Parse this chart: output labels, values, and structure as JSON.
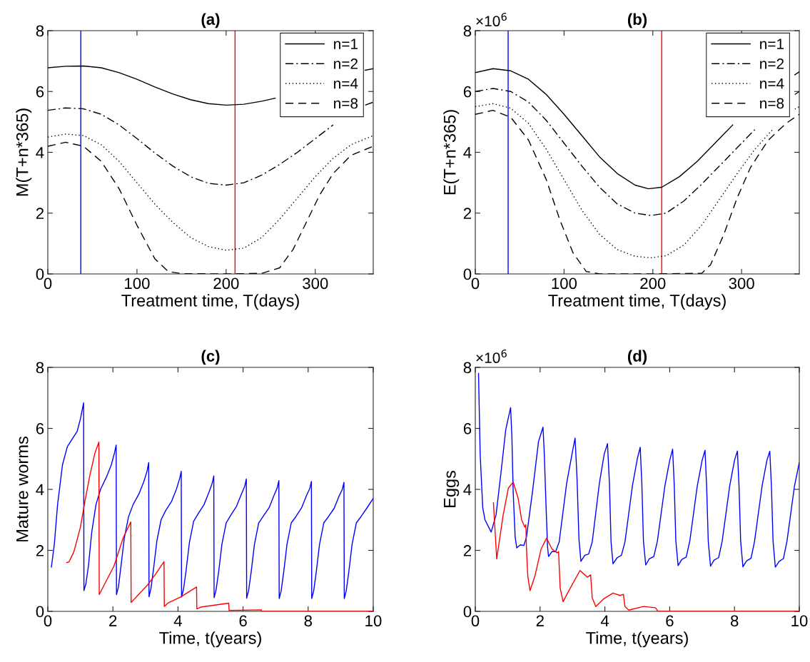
{
  "chart_data": [
    {
      "type": "line",
      "title": "(a)",
      "xlabel": "Treatment time, T(days)",
      "ylabel": "M(T+n*365)",
      "xlim": [
        0,
        365
      ],
      "xticks": [
        0,
        100,
        200,
        300
      ],
      "ylim": [
        0,
        8
      ],
      "yticks": [
        0,
        2,
        4,
        6,
        8
      ],
      "grid": false,
      "legend": "top right",
      "ref_lines": [
        {
          "axis": "x",
          "value": 37,
          "color": "#0000ff"
        },
        {
          "axis": "x",
          "value": 210,
          "color": "#ff0000"
        }
      ],
      "series": [
        {
          "name": "n=1",
          "color": "#000000",
          "line_style": "solid",
          "x": [
            0,
            20,
            40,
            60,
            80,
            100,
            120,
            140,
            160,
            180,
            200,
            220,
            240,
            255,
            280,
            300,
            320,
            340,
            356,
            365
          ],
          "values": [
            6.78,
            6.83,
            6.84,
            6.78,
            6.62,
            6.4,
            6.15,
            5.92,
            5.73,
            5.6,
            5.55,
            5.58,
            5.68,
            5.78,
            null,
            null,
            null,
            null,
            6.7,
            6.75
          ]
        },
        {
          "name": "n=2",
          "color": "#000000",
          "line_style": "dashdot",
          "x": [
            0,
            20,
            40,
            60,
            80,
            100,
            120,
            140,
            160,
            180,
            200,
            220,
            240,
            260,
            280,
            300,
            320,
            340,
            356,
            365
          ],
          "values": [
            5.38,
            5.46,
            5.43,
            5.25,
            4.9,
            4.45,
            3.98,
            3.55,
            3.2,
            2.98,
            2.92,
            3.0,
            3.25,
            3.6,
            4.0,
            4.45,
            4.9,
            null,
            5.55,
            5.65
          ]
        },
        {
          "name": "n=4",
          "color": "#000000",
          "line_style": "dotted",
          "x": [
            0,
            20,
            40,
            60,
            80,
            100,
            120,
            140,
            160,
            180,
            200,
            220,
            240,
            260,
            280,
            300,
            320,
            340,
            365
          ],
          "values": [
            4.5,
            4.6,
            4.55,
            4.25,
            3.7,
            3.0,
            2.3,
            1.7,
            1.2,
            0.9,
            0.78,
            0.85,
            1.2,
            1.8,
            2.5,
            3.2,
            3.8,
            4.25,
            4.55
          ]
        },
        {
          "name": "n=8",
          "color": "#000000",
          "line_style": "dashed",
          "x": [
            0,
            20,
            40,
            60,
            80,
            100,
            120,
            135,
            150,
            200,
            240,
            260,
            275,
            290,
            305,
            320,
            340,
            365
          ],
          "values": [
            4.2,
            4.33,
            4.2,
            3.7,
            2.8,
            1.6,
            0.5,
            0.08,
            0.01,
            0,
            0.02,
            0.2,
            0.8,
            1.7,
            2.6,
            3.3,
            3.9,
            4.2
          ]
        }
      ]
    },
    {
      "type": "line",
      "title": "(b)",
      "xlabel": "Treatment time, T(days)",
      "ylabel": "E(T+n*365)",
      "annotations": [
        "×10$^{6}$"
      ],
      "xlim": [
        0,
        365
      ],
      "xticks": [
        0,
        100,
        200,
        300
      ],
      "ylim": [
        0,
        8
      ],
      "yticks": [
        0,
        2,
        4,
        6,
        8
      ],
      "grid": false,
      "legend": "top right",
      "ref_lines": [
        {
          "axis": "x",
          "value": 37,
          "color": "#0000ff"
        },
        {
          "axis": "x",
          "value": 210,
          "color": "#ff0000"
        }
      ],
      "series": [
        {
          "name": "n=1",
          "color": "#000000",
          "line_style": "solid",
          "x": [
            0,
            20,
            40,
            60,
            80,
            100,
            120,
            140,
            160,
            180,
            195,
            210,
            230,
            250,
            270,
            290,
            310,
            330,
            350,
            360,
            365
          ],
          "values": [
            6.62,
            6.75,
            6.68,
            6.4,
            5.9,
            5.25,
            4.55,
            3.85,
            3.3,
            2.92,
            2.8,
            2.85,
            3.2,
            3.7,
            4.3,
            4.9,
            null,
            null,
            null,
            6.55,
            6.65
          ]
        },
        {
          "name": "n=2",
          "color": "#000000",
          "line_style": "dashdot",
          "x": [
            0,
            20,
            40,
            60,
            80,
            100,
            120,
            140,
            160,
            180,
            198,
            215,
            235,
            255,
            275,
            295,
            315,
            335,
            355,
            360,
            365
          ],
          "values": [
            6.0,
            6.1,
            6.0,
            5.65,
            5.05,
            4.3,
            3.55,
            2.85,
            2.3,
            2.0,
            1.92,
            2.0,
            2.4,
            2.95,
            3.55,
            4.15,
            4.75,
            null,
            null,
            5.9,
            6.0
          ]
        },
        {
          "name": "n=4",
          "color": "#000000",
          "line_style": "dotted",
          "x": [
            0,
            20,
            40,
            60,
            80,
            100,
            120,
            140,
            160,
            180,
            198,
            215,
            235,
            255,
            275,
            295,
            315,
            335,
            355,
            360,
            365
          ],
          "values": [
            5.5,
            5.6,
            5.45,
            4.95,
            4.1,
            3.1,
            2.1,
            1.3,
            0.8,
            0.58,
            0.53,
            0.6,
            0.95,
            1.6,
            2.45,
            3.3,
            4.1,
            4.75,
            null,
            5.42,
            5.5
          ]
        },
        {
          "name": "n=8",
          "color": "#000000",
          "line_style": "dashed",
          "x": [
            0,
            20,
            40,
            60,
            80,
            95,
            110,
            125,
            140,
            200,
            255,
            265,
            280,
            295,
            310,
            330,
            350,
            365
          ],
          "values": [
            5.25,
            5.38,
            5.15,
            4.4,
            3.1,
            1.8,
            0.7,
            0.08,
            0,
            0,
            0.02,
            0.3,
            1.3,
            2.5,
            3.5,
            4.4,
            4.95,
            5.25
          ]
        }
      ]
    },
    {
      "type": "line",
      "title": "(c)",
      "xlabel": "Time, t(years)",
      "ylabel": "Mature worms",
      "xlim": [
        0,
        10
      ],
      "xticks": [
        0,
        2,
        4,
        6,
        8,
        10
      ],
      "ylim": [
        0,
        8
      ],
      "yticks": [
        0,
        2,
        4,
        6,
        8
      ],
      "grid": false,
      "legend": false,
      "series": [
        {
          "color": "#0000ff",
          "line_style": "solid",
          "x": [
            0.11,
            0.2,
            0.3,
            0.45,
            0.6,
            0.75,
            0.9,
            1.0,
            1.1,
            1.11,
            1.17,
            1.25,
            1.35,
            1.48,
            1.62,
            1.8,
            1.95,
            2.05,
            2.1,
            2.11,
            2.17,
            2.25,
            2.35,
            2.48,
            2.62,
            2.8,
            2.95,
            3.05,
            3.1,
            3.11,
            3.17,
            3.25,
            3.35,
            3.48,
            3.62,
            3.8,
            3.95,
            4.05,
            4.1,
            4.11,
            4.17,
            4.25,
            4.35,
            4.48,
            4.62,
            4.8,
            4.95,
            5.05,
            5.1,
            5.11,
            5.17,
            5.25,
            5.35,
            5.48,
            5.62,
            5.8,
            5.95,
            6.05,
            6.1,
            6.11,
            6.17,
            6.25,
            6.35,
            6.48,
            6.62,
            6.8,
            6.95,
            7.05,
            7.1,
            7.11,
            7.17,
            7.25,
            7.35,
            7.48,
            7.62,
            7.8,
            7.95,
            8.05,
            8.1,
            8.11,
            8.17,
            8.25,
            8.35,
            8.48,
            8.62,
            8.8,
            8.95,
            9.05,
            9.1,
            9.11,
            9.17,
            9.25,
            9.35,
            9.48,
            9.62,
            9.8,
            10
          ],
          "values": [
            1.45,
            2.2,
            3.5,
            4.8,
            5.4,
            5.65,
            5.9,
            6.3,
            6.84,
            0.68,
            0.9,
            1.5,
            2.6,
            3.5,
            4.0,
            4.4,
            4.8,
            5.2,
            5.45,
            0.55,
            0.8,
            1.5,
            2.4,
            3.1,
            3.5,
            3.85,
            4.25,
            4.6,
            4.88,
            0.48,
            0.75,
            1.4,
            2.3,
            3.0,
            3.3,
            3.6,
            4.0,
            4.35,
            4.59,
            0.47,
            0.72,
            1.35,
            2.25,
            2.95,
            3.2,
            3.5,
            3.9,
            4.2,
            4.44,
            0.45,
            0.7,
            1.3,
            2.2,
            2.9,
            3.15,
            3.45,
            3.85,
            4.1,
            4.34,
            0.43,
            0.68,
            1.3,
            2.2,
            2.9,
            3.12,
            3.4,
            3.8,
            4.05,
            4.29,
            0.42,
            0.67,
            1.3,
            2.2,
            2.9,
            3.1,
            3.4,
            3.8,
            4.03,
            4.26,
            0.42,
            0.67,
            1.3,
            2.2,
            2.9,
            3.1,
            3.38,
            3.78,
            4.0,
            4.23,
            0.42,
            0.67,
            1.3,
            2.2,
            2.9,
            3.1,
            3.38,
            3.7
          ]
        },
        {
          "color": "#ff0000",
          "line_style": "solid",
          "x": [
            0.58,
            0.65,
            0.8,
            1.0,
            1.15,
            1.3,
            1.45,
            1.57,
            1.58,
            1.7,
            2.03,
            2.32,
            2.55,
            2.56,
            2.7,
            3.06,
            3.3,
            3.57,
            3.58,
            3.7,
            4.08,
            4.57,
            4.58,
            4.7,
            5.56,
            5.57,
            6.56,
            6.57,
            10
          ],
          "values": [
            1.6,
            1.62,
            1.95,
            2.75,
            3.67,
            4.5,
            5.2,
            5.55,
            0.55,
            0.8,
            1.48,
            2.42,
            2.93,
            0.29,
            0.45,
            0.86,
            1.2,
            1.63,
            0.16,
            0.28,
            0.47,
            0.8,
            0.08,
            0.14,
            0.27,
            0.03,
            0.05,
            0.01,
            0.0
          ]
        }
      ]
    },
    {
      "type": "line",
      "title": "(d)",
      "xlabel": "Time, t(years)",
      "ylabel": "Eggs",
      "annotations": [
        "×10$^{6}$"
      ],
      "xlim": [
        0,
        10
      ],
      "xticks": [
        0,
        2,
        4,
        6,
        8,
        10
      ],
      "ylim": [
        0,
        8
      ],
      "yticks": [
        0,
        2,
        4,
        6,
        8
      ],
      "grid": false,
      "legend": false,
      "series": [
        {
          "color": "#0000ff",
          "line_style": "solid",
          "x": [
            0.1,
            0.15,
            0.23,
            0.3,
            0.49,
            0.64,
            0.79,
            0.94,
            1.09,
            1.13,
            1.17,
            1.23,
            1.28,
            1.39,
            1.5,
            1.58,
            1.77,
            1.95,
            2.09,
            2.13,
            2.18,
            2.23,
            2.26,
            2.37,
            2.48,
            2.59,
            2.82,
            3.0,
            3.08,
            3.14,
            3.2,
            3.26,
            3.38,
            3.5,
            3.61,
            3.83,
            3.98,
            4.08,
            4.14,
            4.19,
            4.25,
            4.38,
            4.51,
            4.62,
            4.85,
            5.0,
            5.09,
            5.14,
            5.19,
            5.26,
            5.37,
            5.51,
            5.62,
            5.85,
            6.0,
            6.09,
            6.14,
            6.19,
            6.26,
            6.37,
            6.51,
            6.62,
            6.85,
            7.0,
            7.09,
            7.14,
            7.19,
            7.26,
            7.37,
            7.51,
            7.62,
            7.85,
            8.0,
            8.09,
            8.14,
            8.19,
            8.26,
            8.37,
            8.51,
            8.62,
            8.85,
            9.0,
            9.09,
            9.14,
            9.19,
            9.26,
            9.37,
            9.51,
            9.62,
            9.85,
            10
          ],
          "values": [
            7.8,
            5.16,
            3.4,
            3.0,
            2.6,
            3.16,
            4.52,
            5.96,
            6.68,
            5.7,
            3.9,
            2.44,
            2.08,
            2.18,
            2.16,
            2.44,
            3.96,
            5.56,
            6.04,
            5.16,
            3.56,
            2.12,
            1.8,
            1.96,
            1.96,
            2.28,
            4.2,
            5.24,
            5.68,
            4.36,
            2.36,
            1.64,
            1.84,
            1.88,
            2.28,
            4.2,
            5.16,
            5.5,
            4.2,
            2.28,
            1.56,
            1.76,
            1.84,
            2.28,
            4.12,
            5.0,
            5.38,
            4.2,
            2.3,
            1.52,
            1.72,
            1.8,
            2.3,
            4.1,
            4.95,
            5.32,
            4.15,
            2.3,
            1.5,
            1.7,
            1.78,
            2.3,
            4.1,
            4.95,
            5.28,
            4.1,
            2.3,
            1.48,
            1.68,
            1.76,
            2.3,
            4.1,
            4.95,
            5.26,
            4.1,
            2.3,
            1.46,
            1.65,
            1.74,
            2.3,
            4.1,
            4.95,
            5.25,
            4.1,
            2.3,
            1.45,
            1.63,
            1.73,
            2.3,
            4.1,
            4.88
          ]
        },
        {
          "color": "#ff0000",
          "line_style": "solid",
          "x": [
            0.56,
            0.66,
            0.86,
            1.02,
            1.17,
            1.32,
            1.43,
            1.53,
            1.56,
            1.58,
            1.62,
            1.69,
            1.84,
            2.03,
            2.2,
            2.37,
            2.52,
            2.57,
            2.62,
            2.71,
            2.89,
            3.23,
            3.46,
            3.56,
            3.61,
            3.72,
            3.95,
            4.25,
            4.47,
            4.57,
            4.62,
            4.74,
            5.19,
            5.56,
            5.64,
            10
          ],
          "values": [
            3.56,
            1.72,
            3.16,
            4.04,
            4.24,
            3.72,
            3.0,
            2.76,
            2.84,
            2.04,
            1.16,
            0.68,
            1.16,
            2.04,
            2.4,
            2.04,
            1.92,
            1.96,
            0.76,
            0.32,
            0.68,
            1.34,
            1.12,
            1.2,
            0.44,
            0.16,
            0.4,
            0.6,
            0.52,
            0.56,
            0.16,
            0.04,
            0.16,
            0.12,
            0.0,
            0.0
          ]
        }
      ]
    }
  ]
}
